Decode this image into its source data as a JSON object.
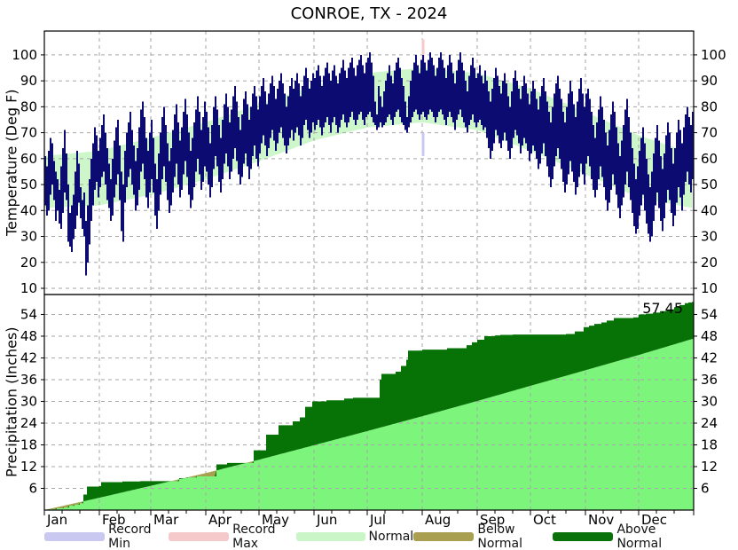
{
  "title": "CONROE, TX - 2024",
  "months": [
    "Jan",
    "Feb",
    "Mar",
    "Apr",
    "May",
    "Jun",
    "Jul",
    "Aug",
    "Sep",
    "Oct",
    "Nov",
    "Dec"
  ],
  "month_start_days": [
    1,
    32,
    61,
    92,
    122,
    153,
    183,
    214,
    245,
    275,
    306,
    336
  ],
  "colors": {
    "bars": "#0b0b72",
    "temp_normal_band": "#cdf6cb",
    "precip_normal_area": "#7df57d",
    "above_normal": "#077307",
    "below_normal": "#a8a050",
    "record_min": "#c8c8f0",
    "record_max": "#f5c9c9",
    "grid": "#a6a6a6",
    "frame": "#000000"
  },
  "legend": {
    "items": [
      {
        "label": "Record Min",
        "color": "#c8c8f0"
      },
      {
        "label": "Record Max",
        "color": "#f5c9c9"
      },
      {
        "label": "Normal",
        "color": "#c9f5c7"
      },
      {
        "label": "Below Normal",
        "color": "#a8a050"
      },
      {
        "label": "Above Normal",
        "color": "#0a720a"
      }
    ]
  },
  "chart_data": [
    {
      "type": "bar",
      "panel": "temperature",
      "title": "CONROE, TX - 2024",
      "ylabel": "Temperature (Deg F)",
      "yticks": [
        10,
        20,
        30,
        40,
        50,
        60,
        70,
        80,
        90,
        100
      ],
      "ylim": [
        7.6,
        109.2
      ],
      "days_in_year": 366,
      "normal_anchor_days": [
        1,
        32,
        61,
        92,
        122,
        153,
        183,
        214,
        245,
        275,
        306,
        336,
        366
      ],
      "normal_high": [
        61,
        63,
        68,
        74,
        81,
        88,
        93,
        95,
        93,
        87,
        78,
        69,
        62
      ],
      "normal_low": [
        41,
        42,
        46,
        52,
        59,
        67,
        72,
        74,
        71,
        63,
        54,
        45,
        41
      ],
      "daily_high": [
        61,
        57,
        63,
        68,
        66,
        59,
        55,
        52,
        48,
        57,
        64,
        71,
        62,
        50,
        39,
        42,
        46,
        55,
        63,
        58,
        49,
        44,
        47,
        36,
        42,
        52,
        60,
        66,
        72,
        69,
        63,
        68,
        73,
        77,
        70,
        64,
        58,
        52,
        60,
        67,
        72,
        75,
        65,
        55,
        50,
        63,
        70,
        74,
        78,
        71,
        65,
        59,
        64,
        72,
        79,
        82,
        76,
        68,
        63,
        70,
        75,
        68,
        58,
        52,
        62,
        70,
        76,
        80,
        73,
        66,
        59,
        64,
        71,
        77,
        81,
        74,
        67,
        72,
        78,
        83,
        77,
        70,
        63,
        68,
        74,
        79,
        84,
        78,
        71,
        76,
        82,
        78,
        72,
        66,
        73,
        80,
        84,
        79,
        73,
        68,
        75,
        81,
        85,
        80,
        74,
        79,
        84,
        88,
        82,
        76,
        71,
        77,
        83,
        86,
        81,
        75,
        80,
        85,
        88,
        84,
        79,
        84,
        88,
        91,
        86,
        81,
        85,
        89,
        92,
        88,
        83,
        87,
        90,
        93,
        89,
        85,
        80,
        84,
        88,
        91,
        87,
        90,
        93,
        89,
        84,
        88,
        92,
        95,
        91,
        87,
        90,
        93,
        91,
        94,
        96,
        92,
        88,
        92,
        95,
        97,
        93,
        90,
        94,
        96,
        92,
        89,
        93,
        95,
        98,
        94,
        91,
        95,
        97,
        99,
        95,
        92,
        96,
        98,
        100,
        96,
        93,
        97,
        99,
        101,
        97,
        92,
        82,
        77,
        88,
        84,
        80,
        86,
        90,
        93,
        96,
        92,
        89,
        94,
        97,
        99,
        95,
        91,
        88,
        82,
        76,
        84,
        90,
        94,
        97,
        100,
        96,
        93,
        98,
        100,
        97,
        94,
        98,
        101,
        99,
        96,
        92,
        95,
        99,
        101,
        98,
        95,
        91,
        96,
        100,
        97,
        93,
        89,
        94,
        98,
        101,
        97,
        94,
        90,
        86,
        92,
        96,
        99,
        95,
        91,
        93,
        96,
        92,
        89,
        94,
        90,
        86,
        82,
        87,
        91,
        95,
        92,
        88,
        85,
        90,
        93,
        89,
        84,
        80,
        86,
        91,
        94,
        90,
        87,
        83,
        88,
        92,
        89,
        85,
        81,
        86,
        90,
        87,
        83,
        79,
        84,
        88,
        91,
        86,
        82,
        78,
        74,
        80,
        85,
        89,
        92,
        87,
        83,
        78,
        74,
        80,
        85,
        90,
        86,
        81,
        76,
        82,
        87,
        91,
        85,
        80,
        85,
        87,
        83,
        78,
        73,
        68,
        74,
        79,
        84,
        80,
        75,
        70,
        65,
        71,
        77,
        82,
        78,
        72,
        66,
        61,
        67,
        73,
        79,
        83,
        76,
        70,
        64,
        58,
        52,
        57,
        63,
        68,
        72,
        66,
        60,
        54,
        49,
        55,
        62,
        68,
        73,
        67,
        61,
        56,
        62,
        69,
        74,
        70,
        64,
        58,
        64,
        70,
        75,
        71,
        66,
        72,
        77,
        80,
        76,
        73,
        78
      ],
      "daily_low": [
        42,
        38,
        40,
        46,
        50,
        44,
        36,
        40,
        35,
        33,
        39,
        47,
        44,
        28,
        26,
        24,
        29,
        33,
        38,
        43,
        37,
        33,
        30,
        15,
        20,
        27,
        36,
        42,
        48,
        51,
        45,
        49,
        53,
        55,
        50,
        44,
        41,
        36,
        38,
        45,
        50,
        54,
        44,
        32,
        28,
        43,
        49,
        53,
        56,
        50,
        46,
        40,
        42,
        48,
        55,
        58,
        52,
        45,
        41,
        47,
        52,
        47,
        38,
        33,
        40,
        46,
        52,
        57,
        51,
        44,
        39,
        42,
        47,
        53,
        58,
        50,
        45,
        48,
        54,
        59,
        53,
        46,
        41,
        44,
        49,
        55,
        60,
        54,
        48,
        51,
        57,
        55,
        50,
        45,
        49,
        56,
        61,
        57,
        51,
        47,
        52,
        58,
        62,
        57,
        52,
        55,
        60,
        64,
        59,
        54,
        50,
        53,
        58,
        62,
        57,
        52,
        56,
        61,
        65,
        60,
        57,
        62,
        66,
        69,
        65,
        61,
        64,
        68,
        71,
        67,
        63,
        66,
        70,
        72,
        68,
        65,
        62,
        65,
        68,
        71,
        67,
        70,
        72,
        69,
        65,
        68,
        73,
        75,
        71,
        68,
        70,
        74,
        71,
        73,
        75,
        72,
        69,
        72,
        74,
        76,
        73,
        70,
        74,
        76,
        73,
        70,
        72,
        75,
        77,
        74,
        72,
        74,
        76,
        78,
        75,
        73,
        75,
        77,
        78,
        75,
        73,
        76,
        77,
        78,
        76,
        74,
        73,
        71,
        72,
        74,
        72,
        73,
        74,
        76,
        77,
        75,
        73,
        76,
        78,
        79,
        76,
        74,
        73,
        71,
        70,
        72,
        74,
        76,
        78,
        79,
        77,
        75,
        77,
        78,
        76,
        75,
        77,
        79,
        78,
        76,
        74,
        76,
        78,
        79,
        77,
        75,
        73,
        76,
        78,
        76,
        74,
        71,
        75,
        77,
        79,
        76,
        74,
        72,
        70,
        73,
        75,
        77,
        74,
        72,
        74,
        75,
        73,
        71,
        72,
        68,
        64,
        60,
        63,
        66,
        71,
        69,
        66,
        64,
        67,
        70,
        67,
        63,
        60,
        64,
        68,
        71,
        69,
        66,
        62,
        65,
        68,
        66,
        63,
        59,
        62,
        65,
        63,
        60,
        56,
        58,
        62,
        66,
        61,
        57,
        53,
        49,
        52,
        57,
        61,
        64,
        60,
        56,
        51,
        47,
        50,
        54,
        59,
        55,
        51,
        46,
        49,
        53,
        58,
        54,
        50,
        58,
        61,
        57,
        52,
        48,
        45,
        48,
        52,
        57,
        53,
        49,
        44,
        40,
        43,
        48,
        54,
        50,
        46,
        41,
        37,
        42,
        45,
        50,
        55,
        49,
        44,
        39,
        34,
        31,
        33,
        38,
        42,
        46,
        40,
        35,
        31,
        28,
        30,
        36,
        42,
        47,
        41,
        36,
        32,
        37,
        43,
        48,
        44,
        39,
        34,
        38,
        43,
        49,
        45,
        40,
        46,
        51,
        55,
        50,
        47,
        52
      ],
      "record_day_bands": [
        {
          "day": 214,
          "record_max_band": [
            96,
            106
          ],
          "record_min_band": [
            61,
            70
          ]
        }
      ]
    },
    {
      "type": "area",
      "panel": "precipitation",
      "ylabel": "Precipitation (Inches)",
      "yticks": [
        6,
        12,
        18,
        24,
        30,
        36,
        42,
        48,
        54
      ],
      "ylim": [
        0,
        59.5
      ],
      "normal_cum_anchor_days": [
        1,
        32,
        61,
        92,
        122,
        153,
        183,
        214,
        245,
        275,
        306,
        336,
        366
      ],
      "normal_cum": [
        0,
        3.4,
        6.7,
        10.2,
        13.9,
        17.9,
        21.8,
        25.9,
        30.1,
        34.3,
        38.6,
        42.8,
        47.2
      ],
      "actual_cum_steps": [
        [
          1,
          0.05
        ],
        [
          4,
          0.2
        ],
        [
          8,
          0.5
        ],
        [
          12,
          0.7
        ],
        [
          15,
          1.2
        ],
        [
          18,
          1.5
        ],
        [
          21,
          1.9
        ],
        [
          23,
          4.3
        ],
        [
          25,
          6.5
        ],
        [
          32,
          6.6
        ],
        [
          33,
          7.7
        ],
        [
          45,
          7.9
        ],
        [
          55,
          8.0
        ],
        [
          77,
          8.8
        ],
        [
          82,
          9.0
        ],
        [
          87,
          9.3
        ],
        [
          98,
          12.6
        ],
        [
          104,
          13.0
        ],
        [
          119,
          16.5
        ],
        [
          126,
          20.8
        ],
        [
          133,
          23.4
        ],
        [
          141,
          24.5
        ],
        [
          145,
          25.6
        ],
        [
          148,
          28.5
        ],
        [
          152,
          30.0
        ],
        [
          160,
          30.3
        ],
        [
          170,
          30.8
        ],
        [
          175,
          31.0
        ],
        [
          190,
          36.0
        ],
        [
          191,
          37.6
        ],
        [
          199,
          38.2
        ],
        [
          202,
          39.8
        ],
        [
          205,
          41.5
        ],
        [
          206,
          44.0
        ],
        [
          214,
          44.3
        ],
        [
          228,
          44.7
        ],
        [
          239,
          45.5
        ],
        [
          242,
          46.3
        ],
        [
          245,
          47.0
        ],
        [
          249,
          48.0
        ],
        [
          255,
          48.2
        ],
        [
          258,
          48.35
        ],
        [
          265,
          48.45
        ],
        [
          295,
          48.6
        ],
        [
          300,
          49.3
        ],
        [
          305,
          50.5
        ],
        [
          308,
          50.9
        ],
        [
          311,
          51.4
        ],
        [
          315,
          51.8
        ],
        [
          318,
          52.3
        ],
        [
          322,
          53.0
        ],
        [
          333,
          53.2
        ],
        [
          336,
          54.0
        ],
        [
          340,
          54.2
        ],
        [
          344,
          54.5
        ],
        [
          348,
          54.9
        ],
        [
          352,
          55.4
        ],
        [
          356,
          56.0
        ],
        [
          359,
          56.6
        ],
        [
          362,
          57.1
        ],
        [
          364,
          57.3
        ],
        [
          366,
          57.45
        ]
      ],
      "total_label": "57.45"
    }
  ]
}
